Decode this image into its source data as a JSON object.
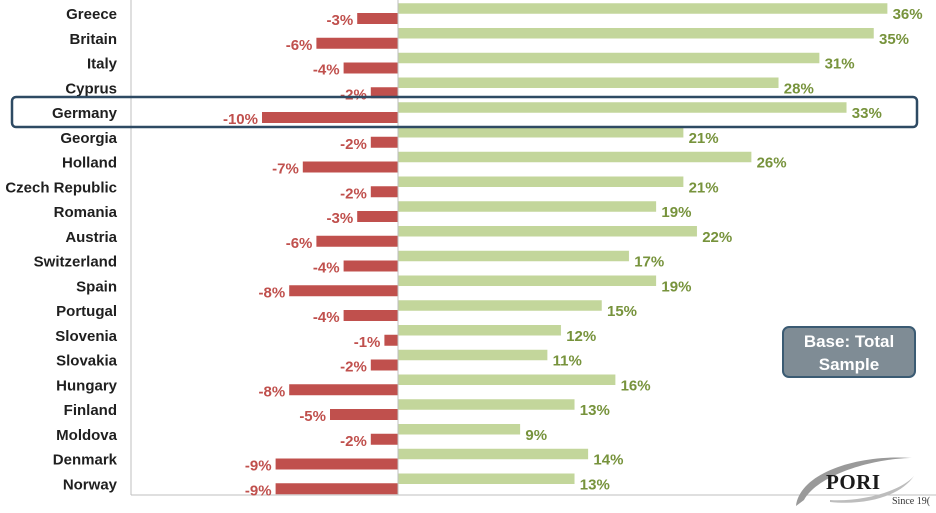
{
  "chart_data": {
    "type": "bar",
    "orientation": "horizontal",
    "categories": [
      "Greece",
      "Britain",
      "Italy",
      "Cyprus",
      "Germany",
      "Georgia",
      "Holland",
      "Czech Republic",
      "Romania",
      "Austria",
      "Switzerland",
      "Spain",
      "Portugal",
      "Slovenia",
      "Slovakia",
      "Hungary",
      "Finland",
      "Moldova",
      "Denmark",
      "Norway"
    ],
    "series": [
      {
        "values": [
          36,
          35,
          31,
          28,
          33,
          21,
          26,
          21,
          19,
          22,
          17,
          19,
          15,
          12,
          11,
          16,
          13,
          9,
          14,
          13
        ],
        "color": "#c3d69b"
      },
      {
        "values": [
          -3,
          -6,
          -4,
          -2,
          -10,
          -2,
          -7,
          -2,
          -3,
          -6,
          -4,
          -8,
          -4,
          -1,
          -2,
          -8,
          -5,
          -2,
          -9,
          -9
        ],
        "color": "#c0504d"
      }
    ],
    "value_suffix": "%",
    "highlighted_category": "Germany",
    "grid": false
  },
  "annotation": {
    "line1": "Base: Total",
    "line2": "Sample"
  },
  "logo": {
    "name": "PORI",
    "tagline": "Since 19("
  }
}
